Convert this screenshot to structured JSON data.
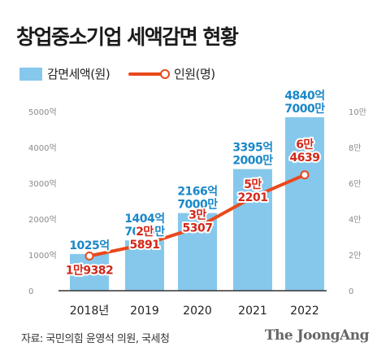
{
  "title": "창업중소기업 세액감면 현황",
  "legend": {
    "bar": "감면세액(원)",
    "line": "인원(명)"
  },
  "colors": {
    "bar": "#86c8ec",
    "line": "#e9491c",
    "bar_label": "#1a87c9",
    "line_label": "#d3281a",
    "axis_text": "#8a8a8a"
  },
  "chart_data": {
    "type": "bar+line",
    "categories": [
      "2018년",
      "2019",
      "2020",
      "2021",
      "2022"
    ],
    "series": [
      {
        "name": "감면세액(원)",
        "type": "bar",
        "axis": "left",
        "values": [
          1025,
          1404.7,
          2166.7,
          3395.2,
          4840.7
        ],
        "labels": [
          [
            "1025억"
          ],
          [
            "1404억",
            "7000만"
          ],
          [
            "2166억",
            "7000만"
          ],
          [
            "3395억",
            "2000만"
          ],
          [
            "4840억",
            "7000만"
          ]
        ]
      },
      {
        "name": "인원(명)",
        "type": "line",
        "axis": "right",
        "values": [
          19382,
          25891,
          35307,
          52201,
          64639
        ],
        "labels": [
          [
            "1만9382"
          ],
          [
            "2만",
            "5891"
          ],
          [
            "3만",
            "5307"
          ],
          [
            "5만",
            "2201"
          ],
          [
            "6만",
            "4639"
          ]
        ]
      }
    ],
    "y_left": {
      "ylim": [
        0,
        5000
      ],
      "ticks": [
        0,
        1000,
        2000,
        3000,
        4000,
        5000
      ],
      "tick_labels": [
        "0",
        "1000억",
        "2000억",
        "3000억",
        "4000억",
        "5000억"
      ]
    },
    "y_right": {
      "ylim": [
        0,
        100000
      ],
      "ticks": [
        0,
        20000,
        40000,
        60000,
        80000,
        100000
      ],
      "tick_labels": [
        "0",
        "2만",
        "4만",
        "6만",
        "8만",
        "10만"
      ]
    },
    "grid": false
  },
  "footer": {
    "source": "자료: 국민의힘 윤영석 의원, 국세청",
    "brand": "The JoongAng"
  }
}
